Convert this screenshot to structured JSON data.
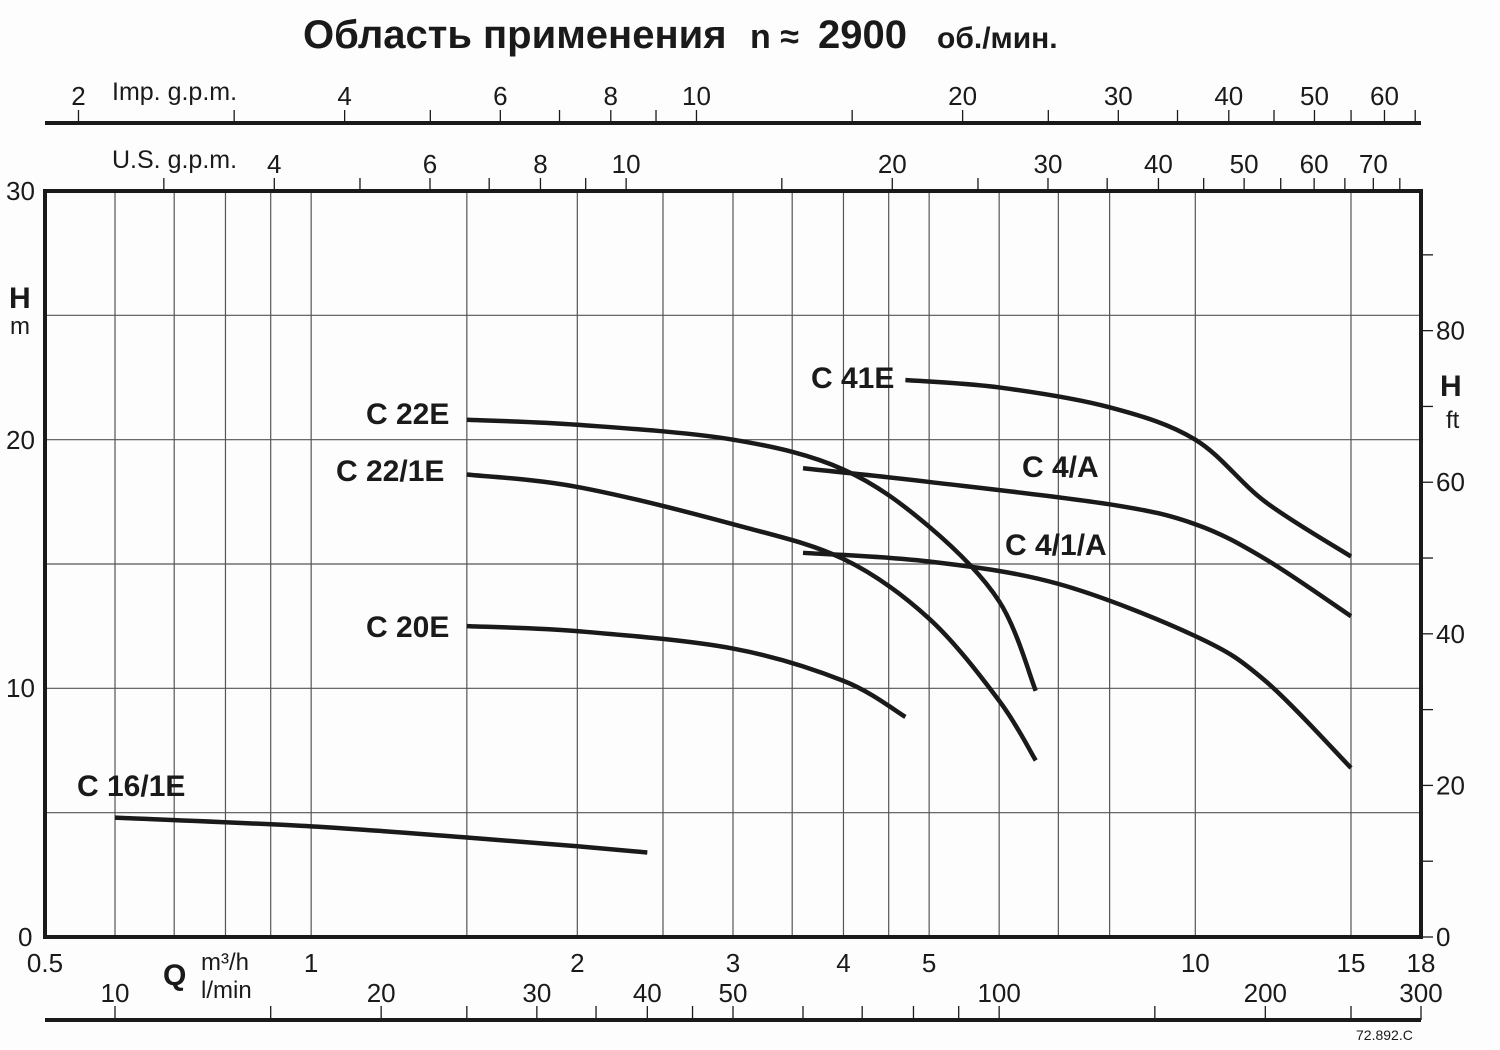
{
  "title": {
    "main": "Область применения",
    "speed_prefix": "n ≈",
    "speed_value": "2900",
    "speed_unit": "об./мин."
  },
  "footnote": "72.892.C",
  "colors": {
    "ink": "#1a1a1a",
    "grid": "#555555",
    "background": "#fdfdfd"
  },
  "axes": {
    "imp_gpm": {
      "label": "Imp. g.p.m.",
      "ticks": [
        "2",
        "4",
        "6",
        "8",
        "10",
        "20",
        "30",
        "40",
        "50",
        "60"
      ]
    },
    "us_gpm": {
      "label": "U.S. g.p.m.",
      "ticks": [
        "4",
        "6",
        "8",
        "10",
        "20",
        "30",
        "40",
        "50",
        "60",
        "70"
      ]
    },
    "left_h": {
      "symbol": "H",
      "unit": "m",
      "ticks": [
        "0",
        "10",
        "20",
        "30"
      ]
    },
    "right_h": {
      "symbol": "H",
      "unit": "ft",
      "ticks": [
        "0",
        "20",
        "40",
        "60",
        "80"
      ]
    },
    "q_m3h": {
      "symbol": "Q",
      "unit": "m³/h",
      "ticks": [
        "0.5",
        "1",
        "2",
        "3",
        "4",
        "5",
        "10",
        "15",
        "18"
      ]
    },
    "q_lmin": {
      "unit": "l/min",
      "ticks": [
        "10",
        "20",
        "30",
        "40",
        "50",
        "100",
        "200",
        "300"
      ]
    }
  },
  "chart_data": {
    "type": "line",
    "title": "Область применения n ≈ 2900 об./мин.",
    "xlabel": "Q (m³/h)",
    "ylabel": "H (m)",
    "xscale": "log",
    "xlim": [
      0.5,
      18
    ],
    "ylim": [
      0,
      30
    ],
    "grid": true,
    "secondary_axes": {
      "top_imp_gpm": [
        2,
        4,
        6,
        8,
        10,
        20,
        30,
        40,
        50,
        60
      ],
      "top_us_gpm": [
        4,
        6,
        8,
        10,
        20,
        30,
        40,
        50,
        60,
        70
      ],
      "bottom_l_min": [
        10,
        20,
        30,
        40,
        50,
        100,
        200,
        300
      ],
      "right_h_ft": [
        0,
        20,
        40,
        60,
        80
      ]
    },
    "series": [
      {
        "name": "C 16/1E",
        "x": [
          0.6,
          1.0,
          1.5,
          2.0,
          2.4
        ],
        "y": [
          4.8,
          4.45,
          4.0,
          3.65,
          3.4
        ]
      },
      {
        "name": "C 22E",
        "x": [
          1.5,
          2.0,
          3.0,
          4.0,
          5.0,
          6.0,
          6.6
        ],
        "y": [
          20.8,
          20.6,
          20.0,
          18.8,
          16.5,
          13.5,
          9.9
        ]
      },
      {
        "name": "C 22/1E",
        "x": [
          1.5,
          2.0,
          3.0,
          4.0,
          5.0,
          6.0,
          6.6
        ],
        "y": [
          18.6,
          18.1,
          16.6,
          15.2,
          12.8,
          9.5,
          7.1
        ]
      },
      {
        "name": "C 20E",
        "x": [
          1.5,
          2.0,
          3.0,
          4.0,
          4.7
        ],
        "y": [
          12.5,
          12.3,
          11.6,
          10.3,
          8.85
        ]
      },
      {
        "name": "C 41E",
        "x": [
          4.7,
          6.0,
          8.0,
          10.0,
          12.0,
          15.0
        ],
        "y": [
          22.4,
          22.1,
          21.3,
          20.0,
          17.5,
          15.3
        ]
      },
      {
        "name": "C 4/A",
        "x": [
          3.6,
          5.0,
          8.0,
          10.0,
          12.0,
          15.0
        ],
        "y": [
          18.85,
          18.3,
          17.4,
          16.6,
          15.2,
          12.9
        ]
      },
      {
        "name": "C 4/1/A",
        "x": [
          3.6,
          5.0,
          7.0,
          10.0,
          12.0,
          15.0
        ],
        "y": [
          15.45,
          15.1,
          14.2,
          12.1,
          10.3,
          6.8
        ]
      }
    ]
  }
}
